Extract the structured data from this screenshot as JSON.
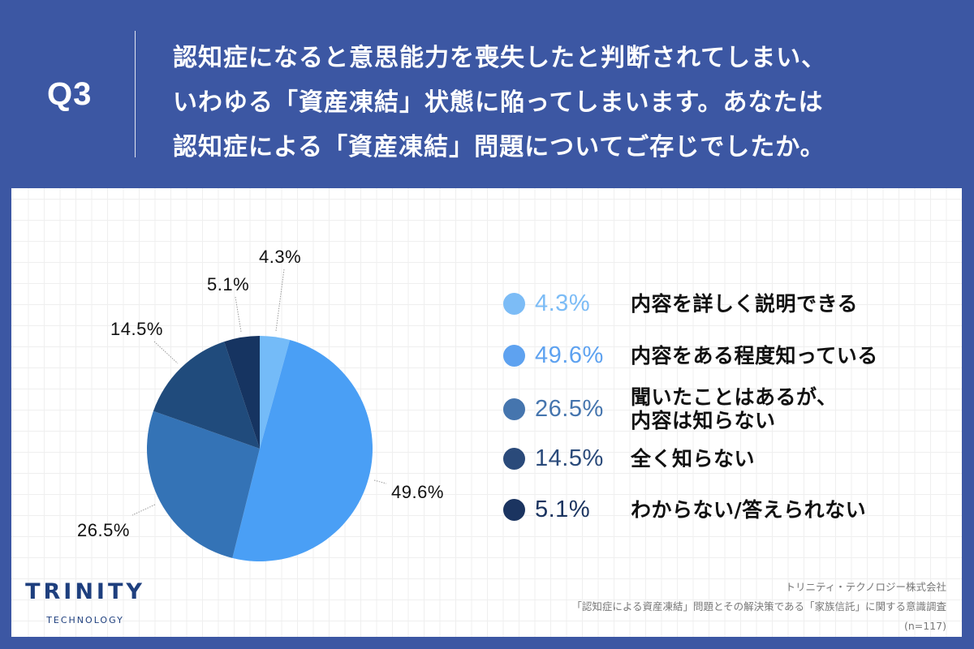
{
  "header": {
    "question_number": "Q3",
    "question_lines": [
      "認知症になると意思能力を喪失したと判断されてしまい、",
      "いわゆる「資産凍結」状態に陥ってしまいます。あなたは",
      "認知症による「資産凍結」問題についてご存じでしたか。"
    ]
  },
  "colors": {
    "background": "#3c57a3",
    "panel": "#ffffff",
    "slices": [
      "#74bbf8",
      "#4a9ff5",
      "#3473b6",
      "#204b7c",
      "#163461"
    ],
    "legend_dots": [
      "#7cbcf6",
      "#5ea2f0",
      "#4575ae",
      "#2a4a7a",
      "#1b3460"
    ],
    "legend_pct": [
      "#7cbcf6",
      "#5ea2f0",
      "#4575ae",
      "#2a4a7a",
      "#1b3460"
    ]
  },
  "chart_data": {
    "type": "pie",
    "title": "認知症になると意思能力を喪失したと判断されてしまい、いわゆる「資産凍結」状態に陥ってしまいます。あなたは認知症による「資産凍結」問題についてご存じでしたか。",
    "categories": [
      "内容を詳しく説明できる",
      "内容をある程度知っている",
      "聞いたことはあるが、内容は知らない",
      "全く知らない",
      "わからない/答えられない"
    ],
    "values": [
      4.3,
      49.6,
      26.5,
      14.5,
      5.1
    ],
    "unit": "%",
    "start_angle": "12 o'clock",
    "direction": "clockwise",
    "legend_position": "right",
    "sample_size": "n=117"
  },
  "pie_labels": [
    "4.3%",
    "49.6%",
    "26.5%",
    "14.5%",
    "5.1%"
  ],
  "legend": [
    {
      "pct": "4.3%",
      "lines": [
        "内容を詳しく説明できる"
      ]
    },
    {
      "pct": "49.6%",
      "lines": [
        "内容をある程度知っている"
      ]
    },
    {
      "pct": "26.5%",
      "lines": [
        "聞いたことはあるが、",
        "内容は知らない"
      ]
    },
    {
      "pct": "14.5%",
      "lines": [
        "全く知らない"
      ]
    },
    {
      "pct": "5.1%",
      "lines": [
        "わからない/答えられない"
      ]
    }
  ],
  "logo": {
    "main": "TRINITY",
    "sub": "TECHNOLOGY"
  },
  "source": {
    "company": "トリニティ・テクノロジー株式会社",
    "survey": "「認知症による資産凍結」問題とその解決策である「家族信託」に関する意識調査",
    "sample": "(n=117)"
  }
}
